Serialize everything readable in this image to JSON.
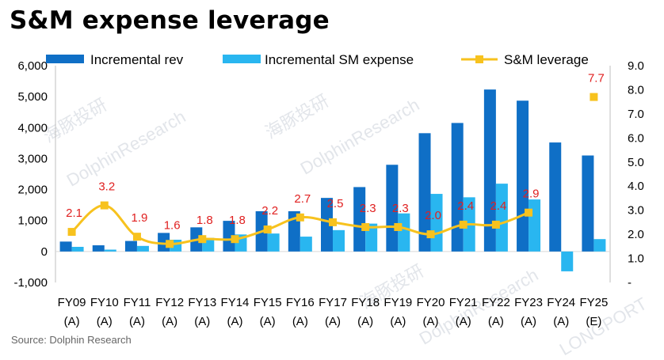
{
  "title": "S&M expense leverage",
  "source": "Source:  Dolphin Research",
  "watermarks": [
    "海豚投研",
    "DolphinResearch",
    "海豚投研",
    "DolphinResearch",
    "海豚投研",
    "DolphinResearch",
    "LONGPORT"
  ],
  "colors": {
    "rev": "#0f6fc6",
    "sm": "#29b6f0",
    "leverage": "#f7c21e",
    "labels": "#e02020"
  },
  "chart_data": {
    "type": "bar",
    "title": "S&M expense leverage",
    "categories": [
      "FY09 (A)",
      "FY10 (A)",
      "FY11 (A)",
      "FY12 (A)",
      "FY13 (A)",
      "FY14 (A)",
      "FY15 (A)",
      "FY16 (A)",
      "FY17 (A)",
      "FY18 (A)",
      "FY19 (A)",
      "FY20 (A)",
      "FY21 (A)",
      "FY22 (A)",
      "FY23 (A)",
      "FY24 (A)",
      "FY25 (E)"
    ],
    "category_lines": [
      [
        "FY09",
        "(A)"
      ],
      [
        "FY10",
        "(A)"
      ],
      [
        "FY11",
        "(A)"
      ],
      [
        "FY12",
        "(A)"
      ],
      [
        "FY13",
        "(A)"
      ],
      [
        "FY14",
        "(A)"
      ],
      [
        "FY15",
        "(A)"
      ],
      [
        "FY16",
        "(A)"
      ],
      [
        "FY17",
        "(A)"
      ],
      [
        "FY18",
        "(A)"
      ],
      [
        "FY19",
        "(A)"
      ],
      [
        "FY20",
        "(A)"
      ],
      [
        "FY21",
        "(A)"
      ],
      [
        "FY22",
        "(A)"
      ],
      [
        "FY23",
        "(A)"
      ],
      [
        "FY24",
        "(A)"
      ],
      [
        "FY25",
        "(E)"
      ]
    ],
    "series": [
      {
        "name": "Incremental rev",
        "type": "bar",
        "axis": "left",
        "values": [
          320,
          200,
          340,
          600,
          780,
          990,
          1300,
          1300,
          1730,
          2080,
          2800,
          3820,
          4150,
          5230,
          4870,
          3520,
          3100
        ]
      },
      {
        "name": "Incremental SM expense",
        "type": "bar",
        "axis": "left",
        "values": [
          150,
          60,
          180,
          380,
          440,
          550,
          580,
          480,
          690,
          900,
          1230,
          1860,
          1750,
          2190,
          1680,
          -640,
          400
        ]
      },
      {
        "name": "S&M leverage",
        "type": "line",
        "axis": "right",
        "values": [
          2.1,
          3.2,
          1.9,
          1.6,
          1.8,
          1.8,
          2.2,
          2.7,
          2.5,
          2.3,
          2.3,
          2.0,
          2.4,
          2.4,
          2.9,
          null,
          7.7
        ],
        "labels": [
          "2.1",
          "3.2",
          "1.9",
          "1.6",
          "1.8",
          "1.8",
          "2.2",
          "2.7",
          "2.5",
          "2.3",
          "2.3",
          "2.0",
          "2.4",
          "2.4",
          "2.9",
          "",
          "7.7"
        ]
      }
    ],
    "y_left": {
      "ylim": [
        -1000,
        6000
      ],
      "ticks": [
        -1000,
        0,
        1000,
        2000,
        3000,
        4000,
        5000,
        6000
      ],
      "tick_labels": [
        "-1,000",
        "0",
        "1,000",
        "2,000",
        "3,000",
        "4,000",
        "5,000",
        "6,000"
      ]
    },
    "y_right": {
      "ylim": [
        0,
        9
      ],
      "ticks": [
        0,
        1,
        2,
        3,
        4,
        5,
        6,
        7,
        8,
        9
      ],
      "tick_labels": [
        "-",
        "1.0",
        "2.0",
        "3.0",
        "4.0",
        "5.0",
        "6.0",
        "7.0",
        "8.0",
        "9.0"
      ]
    },
    "legend": {
      "position": "top"
    },
    "grid": false
  }
}
